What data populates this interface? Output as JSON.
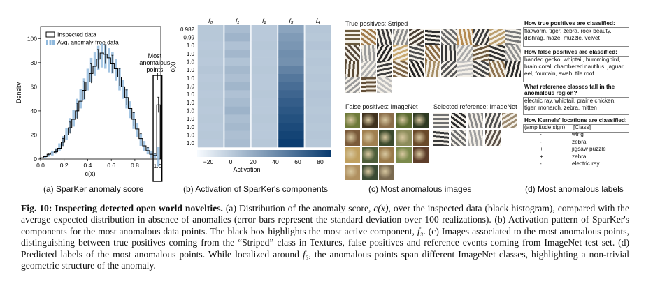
{
  "panel_a": {
    "sublabel": "(a) SparKer anomaly score",
    "chart_data": {
      "type": "bar",
      "ylabel": "Density",
      "xlabel": "c(x)",
      "ylim": [
        0,
        110
      ],
      "xlim": [
        0,
        1.02
      ],
      "yticks": [
        "0",
        "20",
        "40",
        "60",
        "80",
        "100"
      ],
      "xticks": [
        "0.0",
        "0.2",
        "0.4",
        "0.6",
        "0.8",
        "1.0"
      ],
      "legend": [
        "Inspected data",
        "Avg. anomaly-free data"
      ],
      "annotation": "Most anomalous points",
      "annotation_lines": [
        "Most",
        "anomalous",
        "points"
      ],
      "box_tick": "1.0",
      "bin_centers": [
        0.01,
        0.04,
        0.07,
        0.1,
        0.13,
        0.16,
        0.19,
        0.22,
        0.25,
        0.28,
        0.31,
        0.34,
        0.37,
        0.4,
        0.43,
        0.46,
        0.49,
        0.52,
        0.55,
        0.58,
        0.61,
        0.64,
        0.67,
        0.7,
        0.73,
        0.76,
        0.79,
        0.82,
        0.85,
        0.88,
        0.91,
        0.94,
        0.97,
        1.0
      ],
      "series": [
        {
          "name": "Inspected data",
          "values": [
            1,
            2,
            4,
            5,
            6,
            9,
            14,
            20,
            26,
            33,
            40,
            48,
            57,
            64,
            71,
            77,
            83,
            88,
            87,
            84,
            79,
            75,
            68,
            60,
            51,
            42,
            33,
            25,
            17,
            11,
            7,
            4,
            3,
            45
          ]
        },
        {
          "name": "Avg. anomaly-free data",
          "values": [
            1,
            2,
            3,
            5,
            7,
            10,
            15,
            21,
            28,
            34,
            42,
            50,
            58,
            66,
            74,
            79,
            84,
            86,
            85,
            82,
            80,
            74,
            66,
            58,
            50,
            41,
            32,
            24,
            16,
            11,
            7,
            4,
            3,
            2
          ]
        }
      ],
      "error_bars": [
        0,
        1,
        1,
        2,
        2,
        3,
        4,
        5,
        6,
        7,
        8,
        8,
        9,
        9,
        10,
        10,
        10,
        10,
        10,
        10,
        9,
        9,
        9,
        8,
        8,
        7,
        7,
        6,
        5,
        4,
        3,
        3,
        2,
        8
      ]
    }
  },
  "panel_b": {
    "sublabel": "(b) Activation of SparKer's components",
    "chart_data": {
      "type": "heatmap",
      "columns": [
        "f0",
        "f1",
        "f2",
        "f3",
        "f4"
      ],
      "ylabel": "c(x)",
      "row_labels": [
        "0.982",
        "0.99",
        "1.0",
        "1.0",
        "1.0",
        "1.0",
        "1.0",
        "1.0",
        "1.0",
        "1.0",
        "1.0",
        "1.0",
        "1.0",
        "1.0",
        "1.0"
      ],
      "colorbar_label": "Activation",
      "colorbar_ticks": [
        "−20",
        "0",
        "20",
        "40",
        "60",
        "80"
      ],
      "colorbar_range": [
        -30,
        90
      ],
      "values": [
        [
          2,
          9,
          1,
          24,
          3
        ],
        [
          2,
          14,
          1,
          30,
          2
        ],
        [
          1,
          6,
          2,
          33,
          4
        ],
        [
          2,
          12,
          1,
          38,
          2
        ],
        [
          1,
          5,
          1,
          36,
          3
        ],
        [
          3,
          11,
          2,
          45,
          2
        ],
        [
          1,
          7,
          1,
          52,
          3
        ],
        [
          2,
          13,
          1,
          58,
          2
        ],
        [
          1,
          6,
          2,
          63,
          4
        ],
        [
          2,
          10,
          1,
          68,
          3
        ],
        [
          1,
          15,
          1,
          72,
          2
        ],
        [
          2,
          8,
          2,
          76,
          3
        ],
        [
          1,
          11,
          1,
          80,
          2
        ],
        [
          2,
          7,
          1,
          84,
          3
        ],
        [
          1,
          9,
          2,
          88,
          2
        ]
      ]
    }
  },
  "panel_c": {
    "sublabel": "(c) Most anomalous images",
    "title_tp": "True positives: Striped",
    "title_fp": "False positives: ImageNet",
    "title_ref": "Selected reference: ImageNet",
    "tp_colors": [
      "#6b5a3e",
      "#a07a4c",
      "#3a3a3a",
      "#8a8a8a",
      "#4a4036",
      "#2e2e2e",
      "#6a6a6a",
      "#b58a50",
      "#3c3c3c",
      "#bca070",
      "#777777",
      "#58493a",
      "#9a9a9a",
      "#2a2a2a",
      "#c8a870",
      "#4d4d4d",
      "#8b6b43",
      "#383838",
      "#a9a9a9",
      "#6e5a40",
      "#333333",
      "#909090",
      "#5a4a35",
      "#b0b0b0",
      "#3f3f3f",
      "#7a6245",
      "#262626",
      "#a58d64",
      "#555555",
      "#c0c0c0",
      "#474747",
      "#8e7350",
      "#2c2c2c",
      "#999999",
      "#634f38",
      "#bdbdbd"
    ],
    "fp_colors": [
      "#6e7a3a",
      "#40321e",
      "#8a6e4a",
      "#5a6a30",
      "#2e3a22",
      "#7a5a3a",
      "#a08050",
      "#3c4a2c",
      "#8c8c5a",
      "#6a4a2a",
      "#c0a060",
      "#4e5e3a",
      "#9a7a4a",
      "#7c8a4c",
      "#5e3e2a",
      "#b09060",
      "#3a4a34",
      "#7a6a50"
    ],
    "ref_colors": [
      "#707070",
      "#2e2e2e",
      "#8a8a8a",
      "#505050",
      "#9c8a70",
      "#3a3a3a",
      "#6c6c6c",
      "#a0a0a0",
      "#5a5048"
    ]
  },
  "panel_d": {
    "sublabel": "(d) Most anomalous labels",
    "sections": [
      {
        "head": "How true positives are classified:",
        "text": "flatworm, tiger, zebra, rock beauty, dishrag, maze, muzzle, velvet"
      },
      {
        "head": "How false positives are classified:",
        "text": "banded gecko, whiptail, hummingbird, brain coral, chambered nautilus, jaguar, eel, fountain, swab, tile roof"
      },
      {
        "head": "What reference classes fall in the anomalous region?",
        "head_lines": [
          "What reference classes fall in the",
          "anomalous region?"
        ],
        "text": "electric ray, whiptail, prairie chicken, tiger, monarch, zebra, mitten"
      }
    ],
    "kernels_head": "How Kernels' locations are classified:",
    "kernels_cols": [
      "(amplitude sign)",
      "[Class]"
    ],
    "kernels": [
      {
        "sign": "-",
        "cls": "wing"
      },
      {
        "sign": "-",
        "cls": "zebra"
      },
      {
        "sign": "+",
        "cls": "jigsaw puzzle"
      },
      {
        "sign": "+",
        "cls": "zebra"
      },
      {
        "sign": "-",
        "cls": "electric ray"
      }
    ]
  },
  "caption": {
    "fig": "Fig. 10:",
    "title": "Inspecting detected open world novelties.",
    "body_a1": "(a) Distribution of the anomaly score,",
    "cx": "c(x)",
    "body_a2": ", over the inspected data (black histogram), compared with the average expected distribution in absence of anomalies (error bars represent the standard deviation over 100 realizations).",
    "body_b1": "(b) Activation pattern of SparKer's components for the most anomalous data points. The black box highlights the most active component,",
    "f3": "f₃",
    "body_c": ". (c) Images associated to the most anomalous points, distinguishing between true positives coming from the “Striped” class in Textures, false positives and reference events coming from ImageNet test set. (d) Predicted labels of the most anomalous points. While localized around",
    "body_d2": ", the anomalous points span different ImageNet classes, highlighting a non-trivial geometric structure of the anomaly."
  }
}
